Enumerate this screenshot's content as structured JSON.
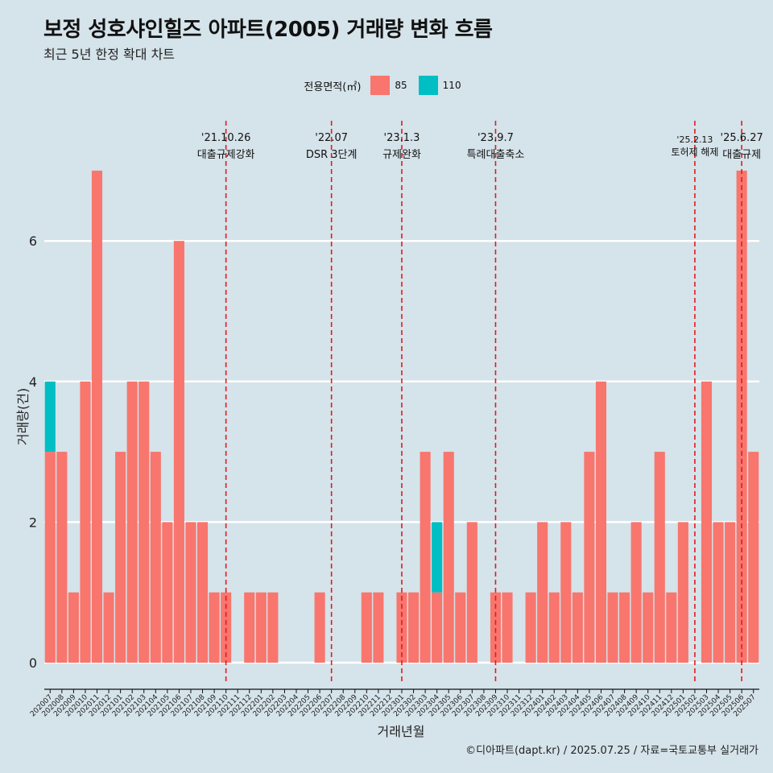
{
  "header": {
    "title": "보정 성호샤인힐즈 아파트(2005) 거래량 변화 흐름",
    "subtitle": "최근 5년 한정 확대 차트"
  },
  "legend": {
    "title": "전용면적(㎡)",
    "items": [
      {
        "label": "85",
        "color": "#f8766d"
      },
      {
        "label": "110",
        "color": "#00bfc4"
      }
    ]
  },
  "caption": "©디아파트(dapt.kr) / 2025.07.25 / 자료=국토교통부 실거래가",
  "chart_data": {
    "type": "bar",
    "stacked": true,
    "xlabel": "거래년월",
    "ylabel": "거래량(건)",
    "ylim": [
      0,
      7
    ],
    "yticks": [
      0,
      2,
      4,
      6
    ],
    "grid": "horizontal",
    "legend_position": "top",
    "categories": [
      "202007",
      "202008",
      "202009",
      "202010",
      "202011",
      "202012",
      "202101",
      "202102",
      "202103",
      "202104",
      "202105",
      "202106",
      "202107",
      "202108",
      "202109",
      "202110",
      "202111",
      "202112",
      "202201",
      "202202",
      "202203",
      "202204",
      "202205",
      "202206",
      "202207",
      "202208",
      "202209",
      "202210",
      "202211",
      "202212",
      "202301",
      "202302",
      "202303",
      "202304",
      "202305",
      "202306",
      "202307",
      "202308",
      "202309",
      "202310",
      "202311",
      "202312",
      "202401",
      "202402",
      "202403",
      "202404",
      "202405",
      "202406",
      "202407",
      "202408",
      "202409",
      "202410",
      "202411",
      "202412",
      "202501",
      "202502",
      "202503",
      "202504",
      "202505",
      "202506",
      "202507"
    ],
    "series": [
      {
        "name": "85",
        "color": "#f8766d",
        "values": [
          3,
          3,
          1,
          4,
          7,
          1,
          3,
          4,
          4,
          3,
          2,
          6,
          2,
          2,
          1,
          1,
          0,
          1,
          1,
          1,
          0,
          0,
          0,
          1,
          0,
          0,
          0,
          1,
          1,
          0,
          1,
          1,
          3,
          1,
          3,
          1,
          2,
          0,
          1,
          1,
          0,
          1,
          2,
          1,
          2,
          1,
          3,
          4,
          1,
          1,
          2,
          1,
          3,
          1,
          2,
          0,
          4,
          2,
          2,
          7,
          3
        ]
      },
      {
        "name": "110",
        "color": "#00bfc4",
        "values": [
          1,
          0,
          0,
          0,
          0,
          0,
          0,
          0,
          0,
          0,
          0,
          0,
          0,
          0,
          0,
          0,
          0,
          0,
          0,
          0,
          0,
          0,
          0,
          0,
          0,
          0,
          0,
          0,
          0,
          0,
          0,
          0,
          0,
          1,
          0,
          0,
          0,
          0,
          0,
          0,
          0,
          0,
          0,
          0,
          0,
          0,
          0,
          0,
          0,
          0,
          0,
          0,
          0,
          0,
          0,
          0,
          0,
          0,
          0,
          0,
          0
        ]
      }
    ],
    "annotations": [
      {
        "month": "202110",
        "date": "'21.10.26",
        "label": "대출규제강화"
      },
      {
        "month": "202207",
        "date": "'22.07",
        "label": "DSR 3단계"
      },
      {
        "month": "202301",
        "date": "'23.1.3",
        "label": "규제완화"
      },
      {
        "month": "202309",
        "date": "'23.9.7",
        "label": "특례대출축소"
      },
      {
        "month": "202502",
        "date": "'25.2.13",
        "label": "토허제 해제"
      },
      {
        "month": "202506",
        "date": "'25.6.27",
        "label": "대출규제"
      }
    ],
    "annotation_line_color": "#e41a1c"
  }
}
